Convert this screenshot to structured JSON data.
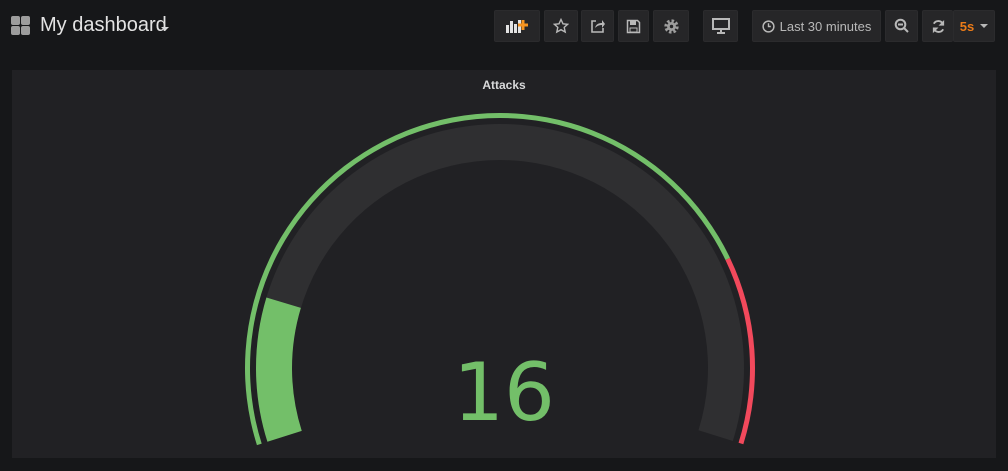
{
  "header": {
    "title": "My dashboard",
    "time_range": "Last 30 minutes",
    "refresh_interval": "5s",
    "icons": [
      "grid-icon",
      "add-panel-icon",
      "star-icon",
      "share-icon",
      "save-icon",
      "gear-icon",
      "tv-icon",
      "clock-icon",
      "zoom-out-icon",
      "refresh-icon"
    ]
  },
  "panel": {
    "title": "Attacks",
    "value": "16",
    "min": 0,
    "max": 100,
    "value_num": 16,
    "threshold": 80,
    "colors": {
      "ok": "#73bf69",
      "critical": "#f2495c",
      "track": "#2f2f31"
    }
  }
}
